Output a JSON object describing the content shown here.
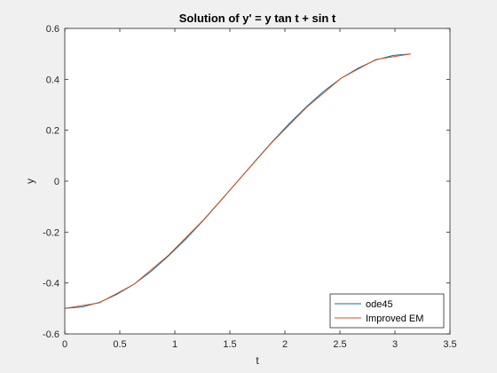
{
  "chart_data": {
    "type": "line",
    "title": "Solution of y' = y tan t + sin t",
    "xlabel": "t",
    "ylabel": "y",
    "xlim": [
      0,
      3.5
    ],
    "ylim": [
      -0.6,
      0.6
    ],
    "xticks": [
      "0",
      "0.5",
      "1",
      "1.5",
      "2",
      "2.5",
      "3",
      "3.5"
    ],
    "yticks": [
      "-0.6",
      "-0.4",
      "-0.2",
      "0",
      "0.2",
      "0.4",
      "0.6"
    ],
    "grid": false,
    "legend_position": "bottom-right",
    "series": [
      {
        "name": "ode45",
        "color": "#0072bd",
        "x": [
          0,
          0.157,
          0.314,
          0.471,
          0.628,
          0.785,
          0.942,
          1.1,
          1.257,
          1.414,
          1.571,
          1.728,
          1.885,
          2.042,
          2.199,
          2.356,
          2.513,
          2.67,
          2.827,
          2.985,
          3.142
        ],
        "y": [
          -0.5,
          -0.494,
          -0.476,
          -0.445,
          -0.405,
          -0.354,
          -0.294,
          -0.227,
          -0.155,
          -0.078,
          0.0,
          0.078,
          0.155,
          0.227,
          0.294,
          0.354,
          0.405,
          0.445,
          0.476,
          0.494,
          0.5
        ]
      },
      {
        "name": "Improved EM",
        "color": "#d95319",
        "x": [
          0,
          0.314,
          0.628,
          0.942,
          1.257,
          1.571,
          1.885,
          2.199,
          2.513,
          2.827,
          3.142
        ],
        "y": [
          -0.5,
          -0.478,
          -0.405,
          -0.291,
          -0.153,
          0.0,
          0.153,
          0.291,
          0.405,
          0.478,
          0.5
        ]
      }
    ]
  }
}
